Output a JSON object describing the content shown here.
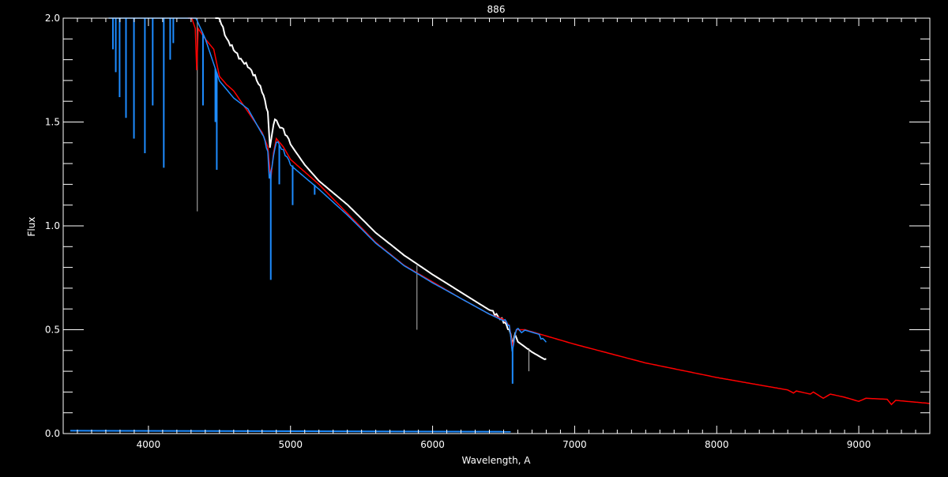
{
  "chart_data": {
    "type": "line",
    "title": "886",
    "xlabel": "Wavelength, A",
    "ylabel": "Flux",
    "xlim": [
      3400,
      9500
    ],
    "ylim": [
      0.0,
      2.0
    ],
    "x_ticks": [
      "4000",
      "5000",
      "6000",
      "7000",
      "8000",
      "9000"
    ],
    "y_ticks": [
      "0.0",
      "0.5",
      "1.0",
      "1.5",
      "2.0"
    ],
    "grid": false,
    "background": "#000000",
    "series": [
      {
        "color": "#ffffff",
        "points": [
          [
            4470,
            2.05
          ],
          [
            4500,
            2.0
          ],
          [
            4550,
            1.9
          ],
          [
            4600,
            1.85
          ],
          [
            4650,
            1.8
          ],
          [
            4700,
            1.77
          ],
          [
            4750,
            1.72
          ],
          [
            4800,
            1.65
          ],
          [
            4840,
            1.55
          ],
          [
            4855,
            1.38
          ],
          [
            4870,
            1.45
          ],
          [
            4890,
            1.51
          ],
          [
            4950,
            1.46
          ],
          [
            5000,
            1.4
          ],
          [
            5100,
            1.3
          ],
          [
            5200,
            1.22
          ],
          [
            5400,
            1.1
          ],
          [
            5600,
            0.96
          ],
          [
            5800,
            0.85
          ],
          [
            6000,
            0.76
          ],
          [
            6200,
            0.68
          ],
          [
            6400,
            0.6
          ],
          [
            6450,
            0.57
          ],
          [
            6500,
            0.54
          ],
          [
            6540,
            0.5
          ],
          [
            6560,
            0.44
          ],
          [
            6580,
            0.47
          ],
          [
            6600,
            0.45
          ],
          [
            6700,
            0.4
          ],
          [
            6800,
            0.36
          ]
        ],
        "lines": [
          [
            4344,
            1.07
          ],
          [
            5890,
            0.5
          ],
          [
            6678,
            0.3
          ]
        ]
      },
      {
        "color": "#ff0000",
        "points": [
          [
            4280,
            2.05
          ],
          [
            4330,
            1.95
          ],
          [
            4340,
            1.75
          ],
          [
            4350,
            1.95
          ],
          [
            4400,
            1.9
          ],
          [
            4460,
            1.85
          ],
          [
            4500,
            1.72
          ],
          [
            4550,
            1.68
          ],
          [
            4600,
            1.65
          ],
          [
            4650,
            1.6
          ],
          [
            4700,
            1.55
          ],
          [
            4750,
            1.5
          ],
          [
            4800,
            1.45
          ],
          [
            4840,
            1.38
          ],
          [
            4861,
            1.22
          ],
          [
            4880,
            1.35
          ],
          [
            4900,
            1.42
          ],
          [
            4950,
            1.38
          ],
          [
            5000,
            1.32
          ],
          [
            5200,
            1.2
          ],
          [
            5400,
            1.06
          ],
          [
            5500,
            0.99
          ],
          [
            5600,
            0.92
          ],
          [
            5800,
            0.81
          ],
          [
            6000,
            0.73
          ],
          [
            6200,
            0.65
          ],
          [
            6400,
            0.575
          ],
          [
            6500,
            0.55
          ],
          [
            6540,
            0.52
          ],
          [
            6563,
            0.42
          ],
          [
            6590,
            0.5
          ],
          [
            6650,
            0.5
          ],
          [
            6800,
            0.47
          ],
          [
            7000,
            0.43
          ],
          [
            7500,
            0.34
          ],
          [
            8000,
            0.27
          ],
          [
            8500,
            0.21
          ],
          [
            8540,
            0.195
          ],
          [
            8560,
            0.205
          ],
          [
            8660,
            0.19
          ],
          [
            8680,
            0.2
          ],
          [
            8750,
            0.17
          ],
          [
            8800,
            0.19
          ],
          [
            8900,
            0.175
          ],
          [
            9000,
            0.155
          ],
          [
            9050,
            0.17
          ],
          [
            9200,
            0.165
          ],
          [
            9230,
            0.14
          ],
          [
            9260,
            0.16
          ],
          [
            9500,
            0.145
          ]
        ],
        "lines": []
      },
      {
        "color": "#1e8cff",
        "points": [
          [
            3720,
            2.05
          ],
          [
            4300,
            2.05
          ],
          [
            4400,
            1.9
          ],
          [
            4500,
            1.7
          ],
          [
            4600,
            1.62
          ],
          [
            4700,
            1.57
          ],
          [
            4800,
            1.45
          ],
          [
            4840,
            1.36
          ],
          [
            4850,
            1.22
          ],
          [
            4880,
            1.33
          ],
          [
            4900,
            1.41
          ],
          [
            4950,
            1.36
          ],
          [
            5000,
            1.3
          ],
          [
            5200,
            1.18
          ],
          [
            5400,
            1.05
          ],
          [
            5500,
            0.98
          ],
          [
            5600,
            0.91
          ],
          [
            5800,
            0.8
          ],
          [
            6000,
            0.72
          ],
          [
            6200,
            0.65
          ],
          [
            6400,
            0.58
          ],
          [
            6500,
            0.55
          ],
          [
            6540,
            0.52
          ],
          [
            6560,
            0.4
          ],
          [
            6590,
            0.5
          ],
          [
            6650,
            0.49
          ],
          [
            6750,
            0.47
          ],
          [
            6800,
            0.44
          ]
        ],
        "lines": [
          [
            3750,
            1.85
          ],
          [
            3770,
            1.74
          ],
          [
            3797,
            1.62
          ],
          [
            3842,
            1.52
          ],
          [
            3898,
            1.42
          ],
          [
            3975,
            1.35
          ],
          [
            4030,
            1.58
          ],
          [
            4108,
            1.28
          ],
          [
            4153,
            1.8
          ],
          [
            4175,
            1.88
          ],
          [
            4384,
            1.58
          ],
          [
            4471,
            1.5
          ],
          [
            4481,
            1.27
          ],
          [
            4861,
            0.74
          ],
          [
            4921,
            1.2
          ],
          [
            5015,
            1.1
          ],
          [
            5170,
            1.15
          ],
          [
            6563,
            0.24
          ]
        ],
        "baseline": [
          [
            3450,
            0.01
          ],
          [
            6550,
            0.005
          ]
        ]
      }
    ]
  }
}
